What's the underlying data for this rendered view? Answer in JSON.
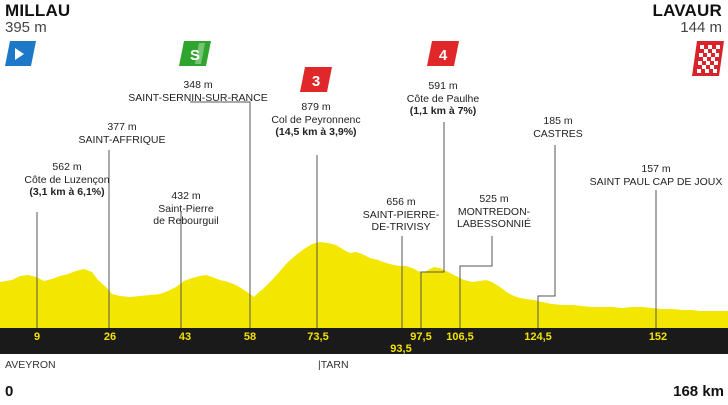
{
  "start": {
    "city": "MILLAU",
    "altitude": "395 m"
  },
  "finish": {
    "city": "LAVAUR",
    "altitude": "144 m"
  },
  "points": [
    {
      "id": "luzencon",
      "alt": "562 m",
      "name": "Côte de Luzençon",
      "detail": "(3,1 km à 6,1%)"
    },
    {
      "id": "saint-affrique",
      "alt": "377 m",
      "name": "SAINT-AFFRIQUE"
    },
    {
      "id": "rebourguil",
      "alt": "432 m",
      "name": "Saint-Pierre",
      "name2": "de Rebourguil"
    },
    {
      "id": "saint-sernin",
      "alt": "348 m",
      "name": "SAINT-SERNIN-SUR-RANCE"
    },
    {
      "id": "peyronnenc",
      "alt": "879 m",
      "name": "Col de Peyronnenc",
      "detail": "(14,5 km à 3,9%)"
    },
    {
      "id": "trivisy",
      "alt": "656 m",
      "name": "SAINT-PIERRE-",
      "name2": "DE-TRIVISY"
    },
    {
      "id": "paulhe",
      "alt": "591 m",
      "name": "Côte de Paulhe",
      "detail": "(1,1 km à 7%)"
    },
    {
      "id": "montredon",
      "alt": "525 m",
      "name": "MONTREDON-",
      "name2": "LABESSONNIÉ"
    },
    {
      "id": "castres",
      "alt": "185 m",
      "name": "CASTRES"
    },
    {
      "id": "saint-paul",
      "alt": "157 m",
      "name": "SAINT PAUL CAP DE JOUX"
    }
  ],
  "badges": {
    "sprint": "S",
    "climb3": "3",
    "climb4": "4"
  },
  "km_ticks": [
    "9",
    "26",
    "43",
    "58",
    "73,5",
    "93,5",
    "97,5",
    "106,5",
    "124,5",
    "152"
  ],
  "regions": {
    "left": "AVEYRON",
    "right": "|TARN"
  },
  "distance": {
    "start": "0",
    "end": "168 km"
  },
  "colors": {
    "profile": "#f3e600",
    "band": "#1a1a1a",
    "tick_text": "#f1e200",
    "sprint": "#2fa52f",
    "climb": "#e0282a",
    "start_flag": "#1e78c8"
  }
}
